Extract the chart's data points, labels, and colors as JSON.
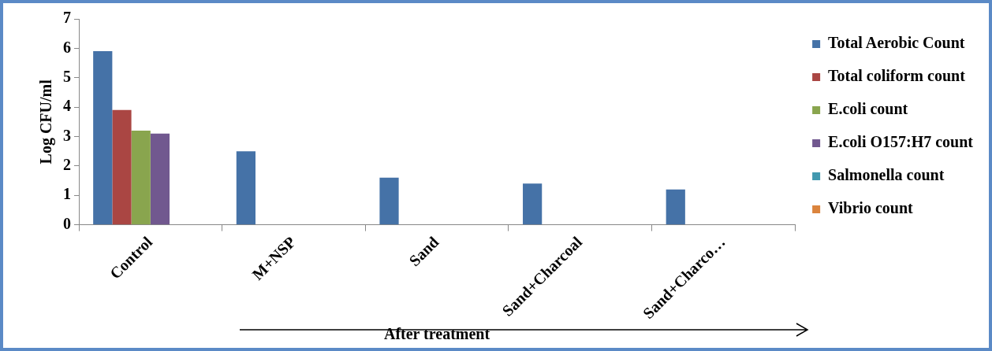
{
  "chart_data": {
    "type": "bar",
    "ylabel": "Log CFU/ml",
    "xlabel": "After treatment",
    "categories": [
      "Control",
      "M+NSP",
      "Sand",
      "Sand+Charcoal",
      "Sand+Charco…"
    ],
    "series": [
      {
        "name": "Total Aerobic Count",
        "color": "#4572a7",
        "values": [
          5.9,
          2.5,
          1.6,
          1.4,
          1.2
        ]
      },
      {
        "name": "Total coliform count",
        "color": "#aa4643",
        "values": [
          3.9,
          0,
          0,
          0,
          0
        ]
      },
      {
        "name": "E.coli count",
        "color": "#89a54e",
        "values": [
          3.2,
          0,
          0,
          0,
          0
        ]
      },
      {
        "name": "E.coli O157:H7 count",
        "color": "#71588f",
        "values": [
          3.1,
          0,
          0,
          0,
          0
        ]
      },
      {
        "name": "Salmonella count",
        "color": "#4198af",
        "values": [
          0,
          0,
          0,
          0,
          0
        ]
      },
      {
        "name": "Vibrio count",
        "color": "#db843d",
        "values": [
          0,
          0,
          0,
          0,
          0
        ]
      }
    ],
    "ylim": [
      0,
      7
    ],
    "yticks": [
      0,
      1,
      2,
      3,
      4,
      5,
      6,
      7
    ],
    "grid": false,
    "legend": "right"
  }
}
